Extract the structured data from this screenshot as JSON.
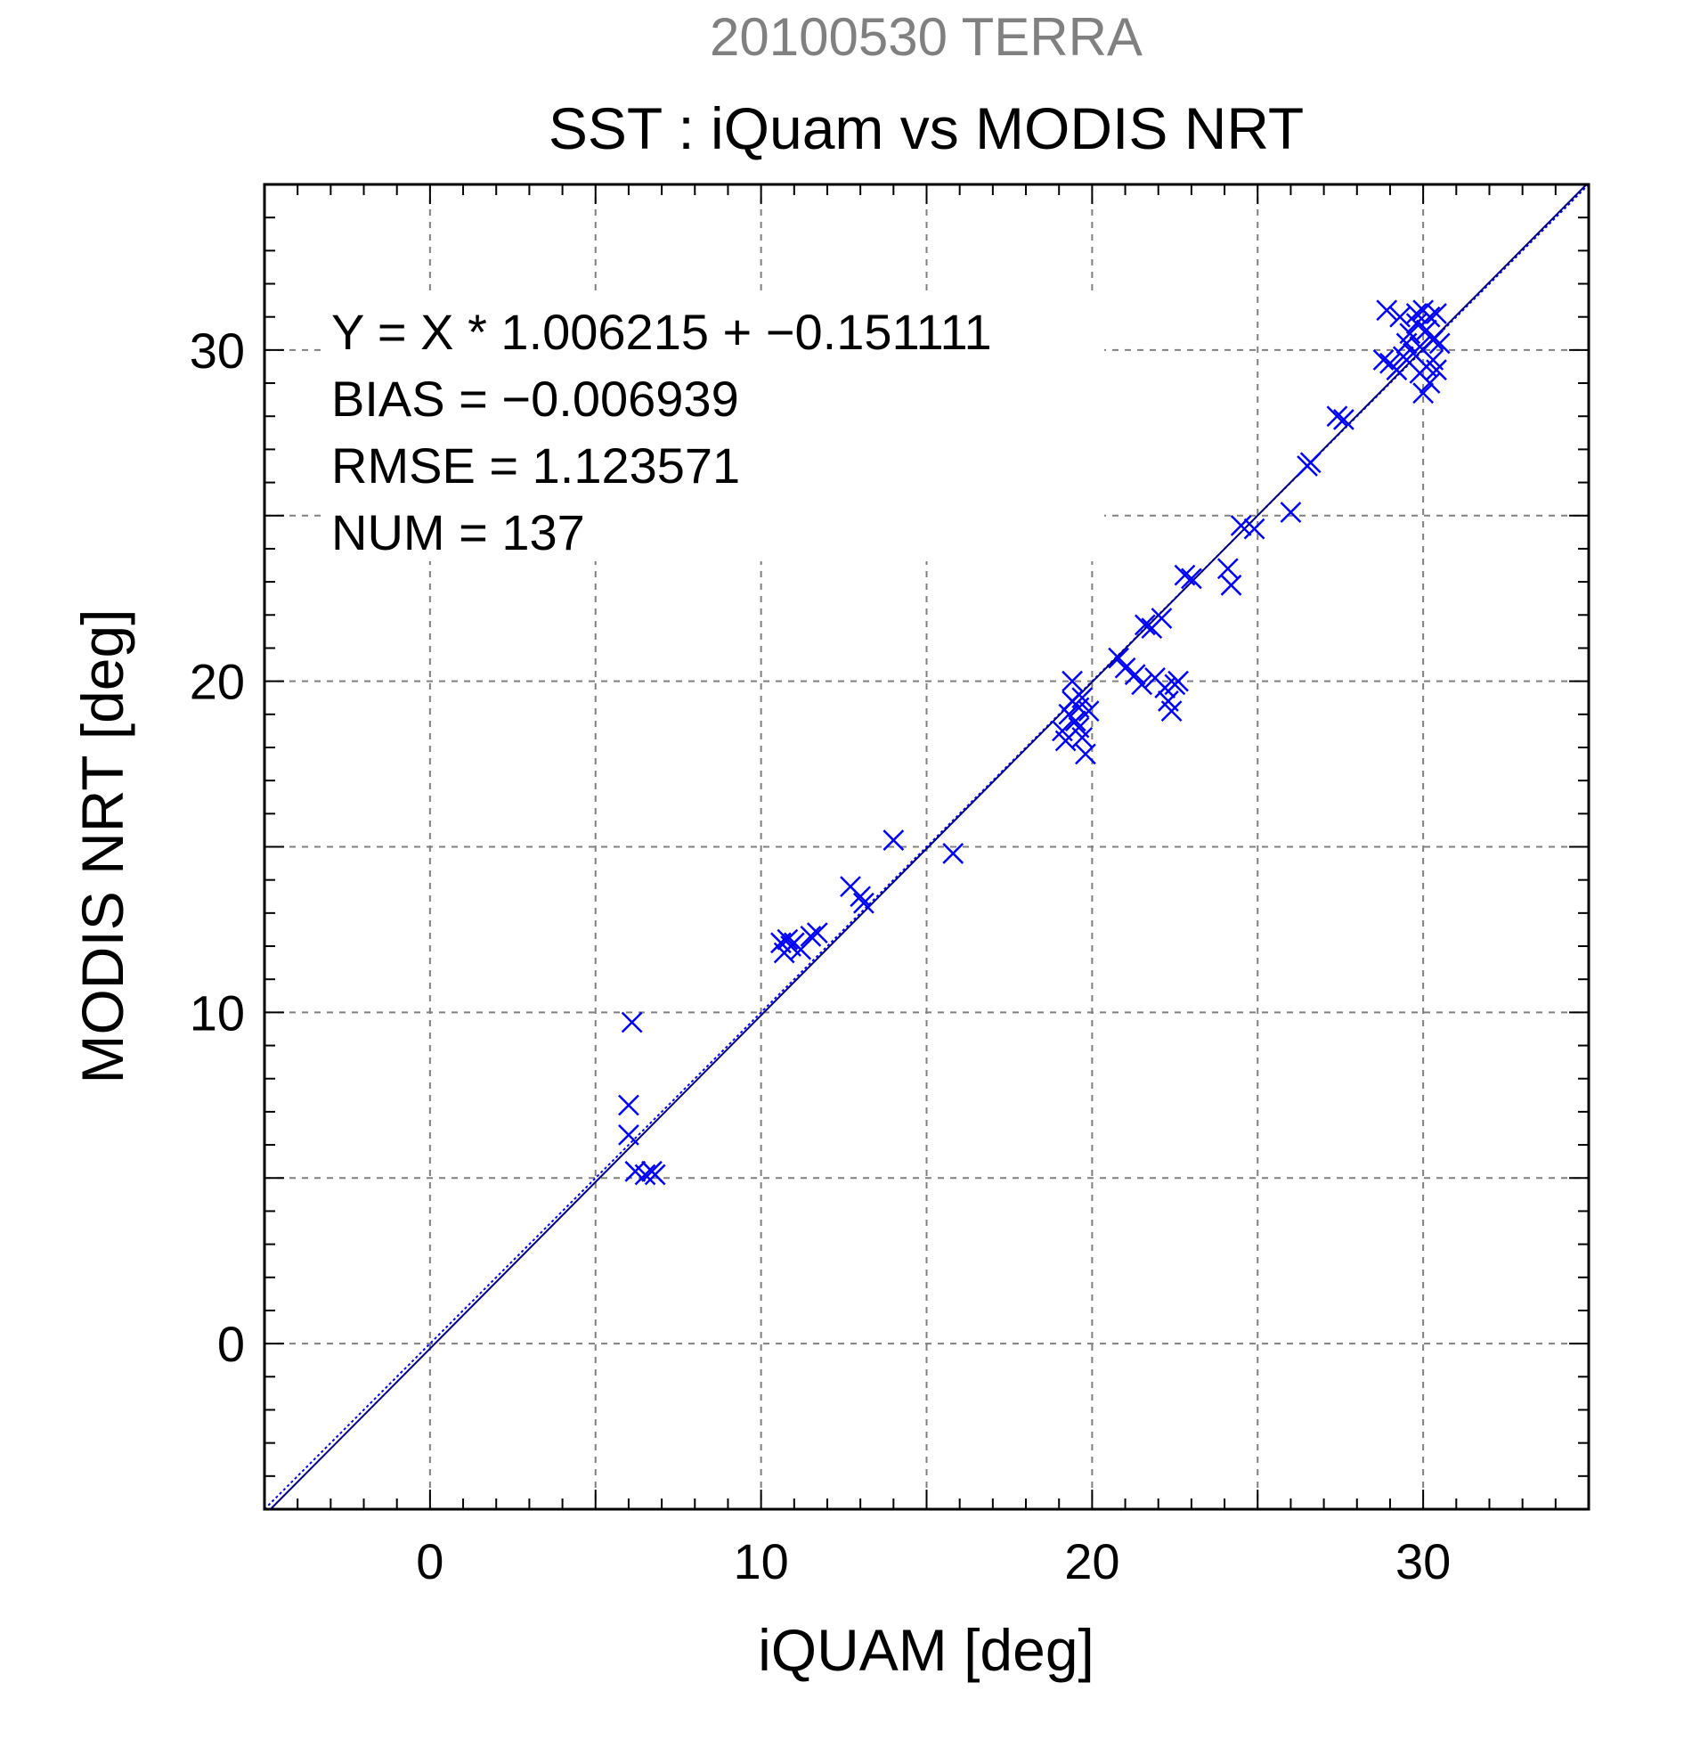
{
  "chart_data": {
    "type": "scatter",
    "supertitle": "20100530 TERRA",
    "title": "SST : iQuam vs MODIS NRT",
    "xlabel": "iQUAM [deg]",
    "ylabel": "MODIS NRT [deg]",
    "xlim": [
      -5,
      35
    ],
    "ylim": [
      -5,
      35
    ],
    "xticks": [
      "0",
      "10",
      "20",
      "30"
    ],
    "yticks": [
      "0",
      "10",
      "20",
      "30"
    ],
    "grid": true,
    "annotations": [
      "Y = X * 1.006215 + −0.151111",
      "BIAS = −0.006939",
      "RMSE = 1.123571",
      "NUM = 137"
    ],
    "fit": {
      "slope": 1.006215,
      "intercept": -0.151111
    },
    "series": [
      {
        "marker": "x",
        "color": "#0000ff",
        "points": [
          [
            6.1,
            9.7
          ],
          [
            6.0,
            7.2
          ],
          [
            6.0,
            6.3
          ],
          [
            6.2,
            5.2
          ],
          [
            6.5,
            5.1
          ],
          [
            6.7,
            5.2
          ],
          [
            6.8,
            5.1
          ],
          [
            10.6,
            12.1
          ],
          [
            10.7,
            11.8
          ],
          [
            10.8,
            12.2
          ],
          [
            10.9,
            12.0
          ],
          [
            11.0,
            12.1
          ],
          [
            11.2,
            11.9
          ],
          [
            11.5,
            12.3
          ],
          [
            11.7,
            12.4
          ],
          [
            12.7,
            13.8
          ],
          [
            13.0,
            13.5
          ],
          [
            13.1,
            13.3
          ],
          [
            14.0,
            15.2
          ],
          [
            15.8,
            14.8
          ],
          [
            19.1,
            18.5
          ],
          [
            19.2,
            18.2
          ],
          [
            19.3,
            19.0
          ],
          [
            19.4,
            19.4
          ],
          [
            19.4,
            20.0
          ],
          [
            19.5,
            18.8
          ],
          [
            19.6,
            19.2
          ],
          [
            19.6,
            18.6
          ],
          [
            19.7,
            19.5
          ],
          [
            19.7,
            18.3
          ],
          [
            19.8,
            17.8
          ],
          [
            19.9,
            19.1
          ],
          [
            20.8,
            20.7
          ],
          [
            21.0,
            20.4
          ],
          [
            21.3,
            20.2
          ],
          [
            21.5,
            19.9
          ],
          [
            21.6,
            21.7
          ],
          [
            21.8,
            21.6
          ],
          [
            21.9,
            20.1
          ],
          [
            22.1,
            21.9
          ],
          [
            22.2,
            19.8
          ],
          [
            22.3,
            19.4
          ],
          [
            22.4,
            19.1
          ],
          [
            22.5,
            19.9
          ],
          [
            22.6,
            20.0
          ],
          [
            22.8,
            23.2
          ],
          [
            23.0,
            23.1
          ],
          [
            24.1,
            23.4
          ],
          [
            24.2,
            22.9
          ],
          [
            24.5,
            24.7
          ],
          [
            24.9,
            24.6
          ],
          [
            26.0,
            25.1
          ],
          [
            26.5,
            26.5
          ],
          [
            26.6,
            26.6
          ],
          [
            27.4,
            28.0
          ],
          [
            27.6,
            27.9
          ],
          [
            28.8,
            29.7
          ],
          [
            28.9,
            31.2
          ],
          [
            29.0,
            29.6
          ],
          [
            29.2,
            29.4
          ],
          [
            29.3,
            31.0
          ],
          [
            29.4,
            29.8
          ],
          [
            29.5,
            30.2
          ],
          [
            29.6,
            30.5
          ],
          [
            29.7,
            29.9
          ],
          [
            29.8,
            30.8
          ],
          [
            29.8,
            31.1
          ],
          [
            29.9,
            29.3
          ],
          [
            29.9,
            30.1
          ],
          [
            30.0,
            31.2
          ],
          [
            30.0,
            28.7
          ],
          [
            30.1,
            29.5
          ],
          [
            30.1,
            30.6
          ],
          [
            30.2,
            29.0
          ],
          [
            30.2,
            31.0
          ],
          [
            30.3,
            29.7
          ],
          [
            30.3,
            30.3
          ],
          [
            30.4,
            31.1
          ],
          [
            30.4,
            29.4
          ],
          [
            30.5,
            30.2
          ]
        ]
      }
    ]
  }
}
